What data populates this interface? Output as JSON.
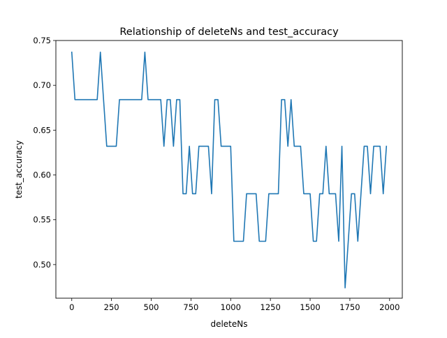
{
  "chart_data": {
    "type": "line",
    "title": "Relationship of deleteNs and test_accuracy",
    "xlabel": "deleteNs",
    "ylabel": "test_accuracy",
    "xlim": [
      -100,
      2080
    ],
    "ylim": [
      0.4625,
      0.75
    ],
    "xticks": [
      0,
      250,
      500,
      750,
      1000,
      1250,
      1500,
      1750,
      2000
    ],
    "xtick_labels": [
      "0",
      "250",
      "500",
      "750",
      "1000",
      "1250",
      "1500",
      "1750",
      "2000"
    ],
    "yticks": [
      0.5,
      0.55,
      0.6,
      0.65,
      0.7,
      0.75
    ],
    "ytick_labels": [
      "0.50",
      "0.55",
      "0.60",
      "0.65",
      "0.70",
      "0.75"
    ],
    "grid": false,
    "legend": "none",
    "series": [
      {
        "color": "#1f77b4",
        "x": [
          0,
          20,
          40,
          60,
          80,
          100,
          120,
          140,
          160,
          180,
          200,
          220,
          240,
          260,
          280,
          300,
          320,
          340,
          360,
          380,
          400,
          420,
          440,
          460,
          480,
          500,
          520,
          540,
          560,
          580,
          600,
          620,
          640,
          660,
          680,
          700,
          720,
          740,
          760,
          780,
          800,
          820,
          840,
          860,
          880,
          900,
          920,
          940,
          960,
          980,
          1000,
          1020,
          1040,
          1060,
          1080,
          1100,
          1120,
          1140,
          1160,
          1180,
          1200,
          1220,
          1240,
          1260,
          1280,
          1300,
          1320,
          1340,
          1360,
          1380,
          1400,
          1420,
          1440,
          1460,
          1480,
          1500,
          1520,
          1540,
          1560,
          1580,
          1600,
          1620,
          1640,
          1660,
          1680,
          1700,
          1720,
          1740,
          1760,
          1780,
          1800,
          1820,
          1840,
          1860,
          1880,
          1900,
          1920,
          1940,
          1960,
          1980
        ],
        "y": [
          0.737,
          0.684,
          0.684,
          0.684,
          0.684,
          0.684,
          0.684,
          0.684,
          0.684,
          0.737,
          0.684,
          0.632,
          0.632,
          0.632,
          0.632,
          0.684,
          0.684,
          0.684,
          0.684,
          0.684,
          0.684,
          0.684,
          0.684,
          0.737,
          0.684,
          0.684,
          0.684,
          0.684,
          0.684,
          0.632,
          0.684,
          0.684,
          0.632,
          0.684,
          0.684,
          0.579,
          0.579,
          0.632,
          0.579,
          0.579,
          0.632,
          0.632,
          0.632,
          0.632,
          0.579,
          0.684,
          0.684,
          0.632,
          0.632,
          0.632,
          0.632,
          0.526,
          0.526,
          0.526,
          0.526,
          0.579,
          0.579,
          0.579,
          0.579,
          0.526,
          0.526,
          0.526,
          0.579,
          0.579,
          0.579,
          0.579,
          0.684,
          0.684,
          0.632,
          0.684,
          0.632,
          0.632,
          0.632,
          0.579,
          0.579,
          0.579,
          0.526,
          0.526,
          0.579,
          0.579,
          0.632,
          0.579,
          0.579,
          0.579,
          0.526,
          0.632,
          0.474,
          0.526,
          0.579,
          0.579,
          0.526,
          0.579,
          0.632,
          0.632,
          0.579,
          0.632,
          0.632,
          0.632,
          0.579,
          0.632
        ]
      }
    ]
  }
}
